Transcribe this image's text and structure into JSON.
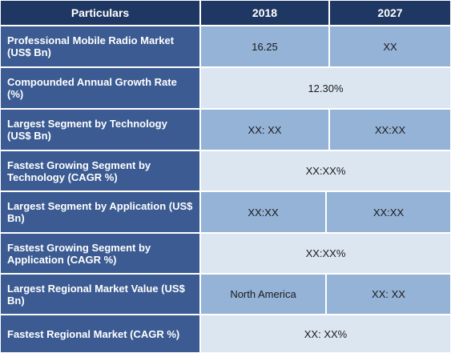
{
  "header": {
    "particulars": "Particulars",
    "year1": "2018",
    "year2": "2027"
  },
  "rows": [
    {
      "label": "Professional Mobile Radio  Market (US$ Bn)",
      "val1": "16.25",
      "val2": "XX"
    },
    {
      "label": "Compounded Annual Growth Rate (%)",
      "span": "12.30%"
    },
    {
      "label": "Largest Segment by Technology (US$ Bn)",
      "val1": "XX: XX",
      "val2": "XX:XX"
    },
    {
      "label": "Fastest Growing Segment by Technology (CAGR %)",
      "span": "XX:XX%"
    },
    {
      "label": "Largest Segment by Application (US$ Bn)",
      "val1": "XX:XX",
      "val2": "XX:XX"
    },
    {
      "label": "Fastest Growing Segment by Application (CAGR %)",
      "span": "XX:XX%"
    },
    {
      "label": "Largest Regional Market Value (US$ Bn)",
      "val1": "North America",
      "val2": "XX: XX"
    },
    {
      "label": "Fastest Regional Market (CAGR %)",
      "span": "XX: XX%"
    }
  ]
}
